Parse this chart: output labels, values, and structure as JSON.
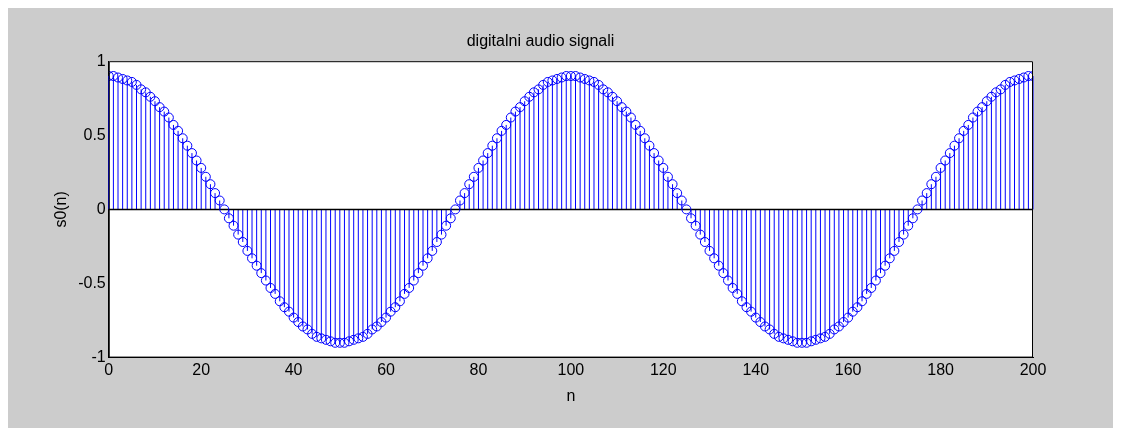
{
  "chart_data": {
    "type": "lollipop",
    "title": "digitalni audio signali",
    "xlabel": "n",
    "ylabel": "s0(n)",
    "x": [
      0,
      1,
      2,
      3,
      4,
      5,
      6,
      7,
      8,
      9,
      10,
      11,
      12,
      13,
      14,
      15,
      16,
      17,
      18,
      19,
      20,
      21,
      22,
      23,
      24,
      25,
      26,
      27,
      28,
      29,
      30,
      31,
      32,
      33,
      34,
      35,
      36,
      37,
      38,
      39,
      40,
      41,
      42,
      43,
      44,
      45,
      46,
      47,
      48,
      49,
      50,
      51,
      52,
      53,
      54,
      55,
      56,
      57,
      58,
      59,
      60,
      61,
      62,
      63,
      64,
      65,
      66,
      67,
      68,
      69,
      70,
      71,
      72,
      73,
      74,
      75,
      76,
      77,
      78,
      79,
      80,
      81,
      82,
      83,
      84,
      85,
      86,
      87,
      88,
      89,
      90,
      91,
      92,
      93,
      94,
      95,
      96,
      97,
      98,
      99,
      100,
      101,
      102,
      103,
      104,
      105,
      106,
      107,
      108,
      109,
      110,
      111,
      112,
      113,
      114,
      115,
      116,
      117,
      118,
      119,
      120,
      121,
      122,
      123,
      124,
      125,
      126,
      127,
      128,
      129,
      130,
      131,
      132,
      133,
      134,
      135,
      136,
      137,
      138,
      139,
      140,
      141,
      142,
      143,
      144,
      145,
      146,
      147,
      148,
      149,
      150,
      151,
      152,
      153,
      154,
      155,
      156,
      157,
      158,
      159,
      160,
      161,
      162,
      163,
      164,
      165,
      166,
      167,
      168,
      169,
      170,
      171,
      172,
      173,
      174,
      175,
      176,
      177,
      178,
      179,
      180,
      181,
      182,
      183,
      184,
      185,
      186,
      187,
      188,
      189,
      190,
      191,
      192,
      193,
      194,
      195,
      196,
      197,
      198,
      199,
      200
    ],
    "values": [
      0.9,
      0.9,
      0.89,
      0.88,
      0.87,
      0.86,
      0.84,
      0.81,
      0.79,
      0.76,
      0.73,
      0.69,
      0.66,
      0.62,
      0.57,
      0.53,
      0.48,
      0.43,
      0.38,
      0.33,
      0.28,
      0.22,
      0.17,
      0.11,
      0.06,
      0,
      -0.06,
      -0.11,
      -0.17,
      -0.22,
      -0.28,
      -0.33,
      -0.38,
      -0.43,
      -0.48,
      -0.53,
      -0.57,
      -0.62,
      -0.66,
      -0.69,
      -0.73,
      -0.76,
      -0.79,
      -0.81,
      -0.84,
      -0.86,
      -0.87,
      -0.88,
      -0.89,
      -0.9,
      -0.9,
      -0.9,
      -0.89,
      -0.88,
      -0.87,
      -0.86,
      -0.84,
      -0.81,
      -0.79,
      -0.76,
      -0.73,
      -0.69,
      -0.66,
      -0.62,
      -0.57,
      -0.53,
      -0.48,
      -0.43,
      -0.38,
      -0.33,
      -0.28,
      -0.22,
      -0.17,
      -0.11,
      -0.06,
      0,
      0.06,
      0.11,
      0.17,
      0.22,
      0.28,
      0.33,
      0.38,
      0.43,
      0.48,
      0.53,
      0.57,
      0.62,
      0.66,
      0.69,
      0.73,
      0.76,
      0.79,
      0.81,
      0.84,
      0.86,
      0.87,
      0.88,
      0.89,
      0.9,
      0.9,
      0.9,
      0.89,
      0.88,
      0.87,
      0.86,
      0.84,
      0.81,
      0.79,
      0.76,
      0.73,
      0.69,
      0.66,
      0.62,
      0.57,
      0.53,
      0.48,
      0.43,
      0.38,
      0.33,
      0.28,
      0.22,
      0.17,
      0.11,
      0.06,
      0,
      -0.06,
      -0.11,
      -0.17,
      -0.22,
      -0.28,
      -0.33,
      -0.38,
      -0.43,
      -0.48,
      -0.53,
      -0.57,
      -0.62,
      -0.66,
      -0.69,
      -0.73,
      -0.76,
      -0.79,
      -0.81,
      -0.84,
      -0.86,
      -0.87,
      -0.88,
      -0.89,
      -0.9,
      -0.9,
      -0.9,
      -0.89,
      -0.88,
      -0.87,
      -0.86,
      -0.84,
      -0.81,
      -0.79,
      -0.76,
      -0.73,
      -0.69,
      -0.66,
      -0.62,
      -0.57,
      -0.53,
      -0.48,
      -0.43,
      -0.38,
      -0.33,
      -0.28,
      -0.22,
      -0.17,
      -0.11,
      -0.06,
      0,
      0.06,
      0.11,
      0.17,
      0.22,
      0.28,
      0.33,
      0.38,
      0.43,
      0.48,
      0.53,
      0.57,
      0.62,
      0.66,
      0.69,
      0.73,
      0.76,
      0.79,
      0.81,
      0.84,
      0.86,
      0.87,
      0.88,
      0.89,
      0.9,
      0.9
    ],
    "color": "#0000ff",
    "marker": "circle",
    "xlim": [
      0,
      200
    ],
    "xticks": [
      0,
      20,
      40,
      60,
      80,
      100,
      120,
      140,
      160,
      180,
      200
    ],
    "ylim": [
      -1,
      1
    ],
    "yticks": [
      -1,
      -0.5,
      0,
      0.5,
      1
    ],
    "ref_lines": [
      {
        "axis": "y",
        "value": 0,
        "color": "#000000"
      }
    ],
    "grid": false,
    "legend": false
  }
}
